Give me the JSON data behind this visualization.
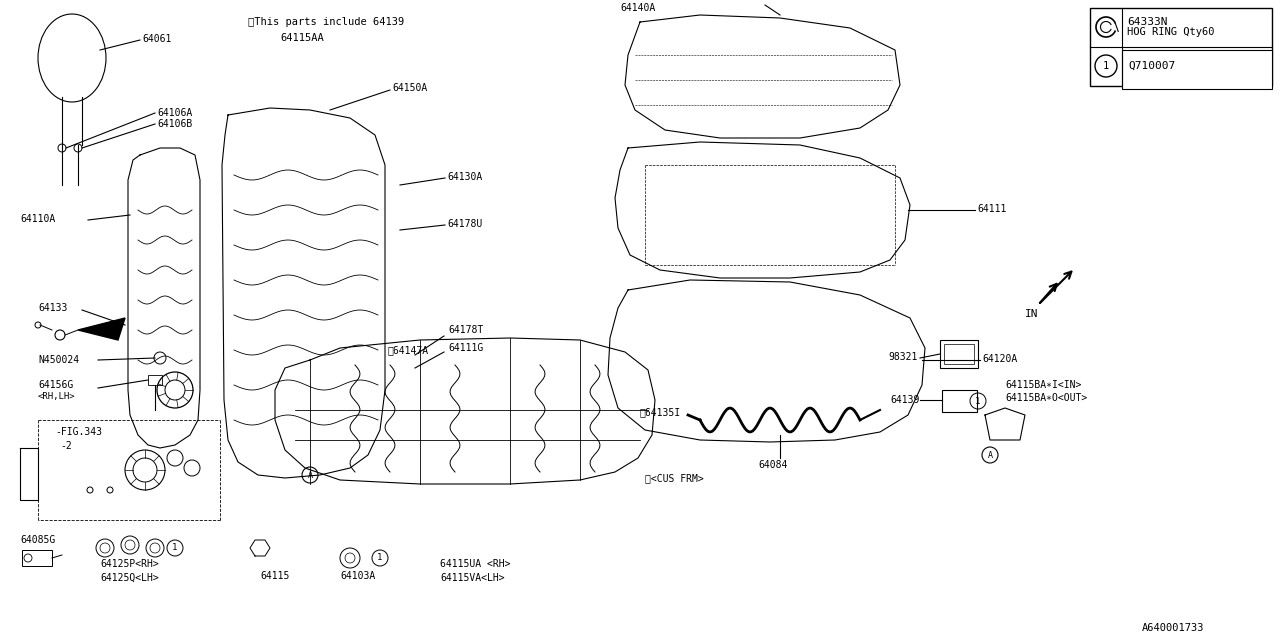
{
  "background_color": "#ffffff",
  "line_color": "#000000",
  "diagram_id": "A640001733",
  "legend_part_no": "64333N",
  "legend_desc": "HOG RING Qty60",
  "legend_symbol": "Q710007",
  "note": "※This parts include 64139",
  "fig_label": "-FIG.343",
  "fig_label2": "-2"
}
